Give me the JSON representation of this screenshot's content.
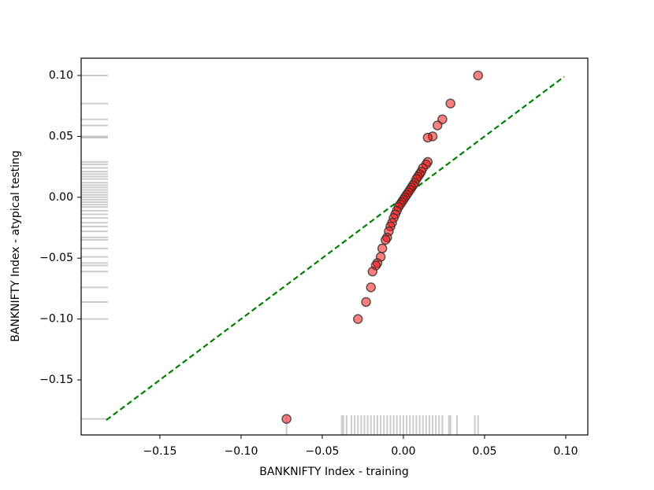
{
  "chart_data": {
    "type": "scatter",
    "xlabel": "BANKNIFTY Index - training",
    "ylabel": "BANKNIFTY Index - atypical testing",
    "color": "#ff0000",
    "edge_color": "#333333",
    "rug_color": "#808080",
    "line_color": "#008000",
    "xlim": [
      -0.1985,
      0.1136
    ],
    "ylim": [
      -0.1952,
      0.1142
    ],
    "xticks": [
      {
        "value": -0.15,
        "label": "−0.15"
      },
      {
        "value": -0.1,
        "label": "−0.10"
      },
      {
        "value": -0.05,
        "label": "−0.05"
      },
      {
        "value": 0,
        "label": "0.00"
      },
      {
        "value": 0.05,
        "label": "0.05"
      },
      {
        "value": 0.1,
        "label": "0.10"
      }
    ],
    "yticks": [
      {
        "value": 0.1,
        "label": "0.10"
      },
      {
        "value": 0.05,
        "label": "0.05"
      },
      {
        "value": 0,
        "label": "0.00"
      },
      {
        "value": -0.05,
        "label": "−0.05"
      },
      {
        "value": -0.1,
        "label": "−0.10"
      },
      {
        "value": -0.15,
        "label": "−0.15"
      }
    ],
    "reference_line": [
      -0.183,
      0.099
    ],
    "x": [
      0.046,
      0.029,
      0.024,
      0.021,
      0.018,
      0.015,
      0.015,
      0.014,
      0.012,
      0.011,
      0.01,
      0.009,
      0.008,
      0.007,
      0.006,
      0.005,
      0.004,
      0.003,
      0.002,
      0.001,
      0.0,
      -0.001,
      -0.002,
      -0.003,
      -0.004,
      -0.005,
      -0.006,
      -0.007,
      -0.008,
      -0.009,
      -0.01,
      -0.011,
      -0.013,
      -0.014,
      -0.016,
      -0.017,
      -0.019,
      -0.02,
      -0.023,
      -0.028,
      -0.072
    ],
    "y": [
      0.1,
      0.077,
      0.064,
      0.059,
      0.05,
      0.049,
      0.029,
      0.027,
      0.024,
      0.021,
      0.019,
      0.017,
      0.015,
      0.012,
      0.01,
      0.008,
      0.006,
      0.004,
      0.002,
      0.0,
      -0.002,
      -0.004,
      -0.006,
      -0.008,
      -0.011,
      -0.014,
      -0.017,
      -0.021,
      -0.024,
      -0.028,
      -0.033,
      -0.035,
      -0.042,
      -0.049,
      -0.054,
      -0.056,
      -0.061,
      -0.074,
      -0.086,
      -0.1,
      -0.182
    ],
    "rug_x": [
      -0.072,
      -0.038,
      -0.037,
      -0.035,
      -0.032,
      -0.03,
      -0.028,
      -0.026,
      -0.024,
      -0.022,
      -0.02,
      -0.018,
      -0.016,
      -0.014,
      -0.012,
      -0.01,
      -0.008,
      -0.006,
      -0.004,
      -0.002,
      0.0,
      0.002,
      0.004,
      0.006,
      0.008,
      0.01,
      0.012,
      0.014,
      0.016,
      0.018,
      0.02,
      0.022,
      0.024,
      0.028,
      0.029,
      0.033,
      0.044,
      0.046
    ]
  }
}
